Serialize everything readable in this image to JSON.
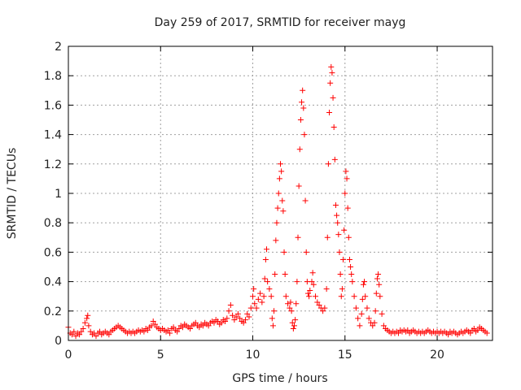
{
  "chart_data": {
    "type": "scatter",
    "title": "Day 259 of 2017, SRMTID for receiver mayg",
    "xlabel": "GPS time / hours",
    "ylabel": "SRMTID / TECUs",
    "xlim": [
      0,
      23
    ],
    "ylim": [
      0,
      2
    ],
    "xticks": [
      0,
      5,
      10,
      15,
      20
    ],
    "xtick_labels": [
      "0",
      "5",
      "10",
      "15",
      "20"
    ],
    "yticks": [
      0,
      0.2,
      0.4,
      0.6,
      0.8,
      1,
      1.2,
      1.4,
      1.6,
      1.8,
      2
    ],
    "ytick_labels": [
      "0",
      "0.2",
      "0.4",
      "0.6",
      "0.8",
      "1",
      "1.2",
      "1.4",
      "1.6",
      "1.8",
      "2"
    ],
    "grid": true,
    "marker": "plus",
    "marker_color": "#ff0000",
    "series": [
      {
        "name": "SRMTID",
        "points": [
          [
            0.0,
            0.09
          ],
          [
            0.1,
            0.05
          ],
          [
            0.2,
            0.04
          ],
          [
            0.3,
            0.06
          ],
          [
            0.4,
            0.03
          ],
          [
            0.5,
            0.05
          ],
          [
            0.6,
            0.04
          ],
          [
            0.7,
            0.06
          ],
          [
            0.8,
            0.08
          ],
          [
            0.9,
            0.12
          ],
          [
            1.0,
            0.15
          ],
          [
            1.05,
            0.17
          ],
          [
            1.1,
            0.1
          ],
          [
            1.2,
            0.06
          ],
          [
            1.3,
            0.04
          ],
          [
            1.4,
            0.05
          ],
          [
            1.5,
            0.03
          ],
          [
            1.6,
            0.05
          ],
          [
            1.7,
            0.06
          ],
          [
            1.8,
            0.04
          ],
          [
            1.9,
            0.05
          ],
          [
            2.0,
            0.06
          ],
          [
            2.1,
            0.05
          ],
          [
            2.2,
            0.04
          ],
          [
            2.3,
            0.06
          ],
          [
            2.4,
            0.07
          ],
          [
            2.5,
            0.08
          ],
          [
            2.6,
            0.09
          ],
          [
            2.7,
            0.1
          ],
          [
            2.8,
            0.09
          ],
          [
            2.9,
            0.08
          ],
          [
            3.0,
            0.07
          ],
          [
            3.1,
            0.06
          ],
          [
            3.2,
            0.05
          ],
          [
            3.3,
            0.06
          ],
          [
            3.4,
            0.05
          ],
          [
            3.5,
            0.06
          ],
          [
            3.6,
            0.05
          ],
          [
            3.7,
            0.06
          ],
          [
            3.8,
            0.07
          ],
          [
            3.9,
            0.06
          ],
          [
            4.0,
            0.07
          ],
          [
            4.1,
            0.06
          ],
          [
            4.2,
            0.08
          ],
          [
            4.3,
            0.07
          ],
          [
            4.4,
            0.09
          ],
          [
            4.5,
            0.1
          ],
          [
            4.6,
            0.13
          ],
          [
            4.7,
            0.11
          ],
          [
            4.8,
            0.09
          ],
          [
            4.9,
            0.08
          ],
          [
            5.0,
            0.07
          ],
          [
            5.1,
            0.08
          ],
          [
            5.2,
            0.07
          ],
          [
            5.3,
            0.06
          ],
          [
            5.4,
            0.07
          ],
          [
            5.5,
            0.05
          ],
          [
            5.6,
            0.08
          ],
          [
            5.7,
            0.09
          ],
          [
            5.8,
            0.07
          ],
          [
            5.9,
            0.06
          ],
          [
            6.0,
            0.08
          ],
          [
            6.1,
            0.1
          ],
          [
            6.2,
            0.09
          ],
          [
            6.3,
            0.11
          ],
          [
            6.4,
            0.1
          ],
          [
            6.5,
            0.09
          ],
          [
            6.6,
            0.08
          ],
          [
            6.7,
            0.1
          ],
          [
            6.8,
            0.11
          ],
          [
            6.9,
            0.12
          ],
          [
            7.0,
            0.1
          ],
          [
            7.1,
            0.09
          ],
          [
            7.2,
            0.11
          ],
          [
            7.3,
            0.1
          ],
          [
            7.4,
            0.12
          ],
          [
            7.5,
            0.11
          ],
          [
            7.6,
            0.1
          ],
          [
            7.7,
            0.12
          ],
          [
            7.8,
            0.13
          ],
          [
            7.9,
            0.12
          ],
          [
            8.0,
            0.14
          ],
          [
            8.1,
            0.13
          ],
          [
            8.2,
            0.11
          ],
          [
            8.3,
            0.12
          ],
          [
            8.4,
            0.14
          ],
          [
            8.5,
            0.13
          ],
          [
            8.6,
            0.15
          ],
          [
            8.7,
            0.2
          ],
          [
            8.8,
            0.24
          ],
          [
            8.9,
            0.17
          ],
          [
            9.0,
            0.14
          ],
          [
            9.1,
            0.16
          ],
          [
            9.2,
            0.18
          ],
          [
            9.3,
            0.15
          ],
          [
            9.4,
            0.13
          ],
          [
            9.5,
            0.12
          ],
          [
            9.6,
            0.14
          ],
          [
            9.7,
            0.18
          ],
          [
            9.8,
            0.16
          ],
          [
            9.9,
            0.22
          ],
          [
            10.0,
            0.3
          ],
          [
            10.05,
            0.35
          ],
          [
            10.1,
            0.25
          ],
          [
            10.2,
            0.22
          ],
          [
            10.3,
            0.28
          ],
          [
            10.4,
            0.32
          ],
          [
            10.5,
            0.26
          ],
          [
            10.6,
            0.3
          ],
          [
            10.65,
            0.42
          ],
          [
            10.7,
            0.55
          ],
          [
            10.75,
            0.62
          ],
          [
            10.8,
            0.4
          ],
          [
            10.9,
            0.35
          ],
          [
            11.0,
            0.3
          ],
          [
            11.05,
            0.15
          ],
          [
            11.1,
            0.1
          ],
          [
            11.15,
            0.2
          ],
          [
            11.2,
            0.45
          ],
          [
            11.25,
            0.68
          ],
          [
            11.3,
            0.8
          ],
          [
            11.35,
            0.9
          ],
          [
            11.4,
            1.0
          ],
          [
            11.45,
            1.1
          ],
          [
            11.5,
            1.2
          ],
          [
            11.55,
            1.15
          ],
          [
            11.6,
            0.95
          ],
          [
            11.65,
            0.88
          ],
          [
            11.7,
            0.6
          ],
          [
            11.75,
            0.45
          ],
          [
            11.8,
            0.3
          ],
          [
            11.9,
            0.25
          ],
          [
            12.0,
            0.22
          ],
          [
            12.05,
            0.26
          ],
          [
            12.1,
            0.2
          ],
          [
            12.15,
            0.12
          ],
          [
            12.2,
            0.08
          ],
          [
            12.25,
            0.1
          ],
          [
            12.3,
            0.14
          ],
          [
            12.35,
            0.25
          ],
          [
            12.4,
            0.4
          ],
          [
            12.45,
            0.7
          ],
          [
            12.5,
            1.05
          ],
          [
            12.55,
            1.3
          ],
          [
            12.6,
            1.5
          ],
          [
            12.65,
            1.62
          ],
          [
            12.7,
            1.7
          ],
          [
            12.75,
            1.58
          ],
          [
            12.8,
            1.4
          ],
          [
            12.85,
            0.95
          ],
          [
            12.9,
            0.6
          ],
          [
            12.95,
            0.4
          ],
          [
            13.0,
            0.32
          ],
          [
            13.05,
            0.3
          ],
          [
            13.1,
            0.34
          ],
          [
            13.2,
            0.4
          ],
          [
            13.25,
            0.46
          ],
          [
            13.3,
            0.38
          ],
          [
            13.4,
            0.3
          ],
          [
            13.5,
            0.26
          ],
          [
            13.6,
            0.24
          ],
          [
            13.7,
            0.22
          ],
          [
            13.8,
            0.2
          ],
          [
            13.9,
            0.22
          ],
          [
            14.0,
            0.35
          ],
          [
            14.05,
            0.7
          ],
          [
            14.1,
            1.2
          ],
          [
            14.15,
            1.55
          ],
          [
            14.2,
            1.75
          ],
          [
            14.25,
            1.86
          ],
          [
            14.3,
            1.82
          ],
          [
            14.35,
            1.65
          ],
          [
            14.4,
            1.45
          ],
          [
            14.45,
            1.23
          ],
          [
            14.5,
            0.92
          ],
          [
            14.55,
            0.85
          ],
          [
            14.6,
            0.8
          ],
          [
            14.65,
            0.72
          ],
          [
            14.7,
            0.6
          ],
          [
            14.75,
            0.45
          ],
          [
            14.8,
            0.3
          ],
          [
            14.85,
            0.35
          ],
          [
            14.9,
            0.55
          ],
          [
            14.95,
            0.75
          ],
          [
            15.0,
            1.0
          ],
          [
            15.05,
            1.15
          ],
          [
            15.1,
            1.1
          ],
          [
            15.15,
            0.9
          ],
          [
            15.2,
            0.7
          ],
          [
            15.25,
            0.55
          ],
          [
            15.3,
            0.5
          ],
          [
            15.35,
            0.45
          ],
          [
            15.4,
            0.4
          ],
          [
            15.5,
            0.3
          ],
          [
            15.6,
            0.22
          ],
          [
            15.7,
            0.15
          ],
          [
            15.8,
            0.1
          ],
          [
            15.9,
            0.18
          ],
          [
            15.95,
            0.28
          ],
          [
            16.0,
            0.38
          ],
          [
            16.05,
            0.4
          ],
          [
            16.1,
            0.3
          ],
          [
            16.2,
            0.22
          ],
          [
            16.3,
            0.15
          ],
          [
            16.4,
            0.12
          ],
          [
            16.5,
            0.1
          ],
          [
            16.6,
            0.12
          ],
          [
            16.65,
            0.2
          ],
          [
            16.7,
            0.32
          ],
          [
            16.75,
            0.42
          ],
          [
            16.8,
            0.45
          ],
          [
            16.85,
            0.38
          ],
          [
            16.9,
            0.3
          ],
          [
            17.0,
            0.18
          ],
          [
            17.1,
            0.1
          ],
          [
            17.2,
            0.08
          ],
          [
            17.3,
            0.07
          ],
          [
            17.4,
            0.06
          ],
          [
            17.5,
            0.05
          ],
          [
            17.6,
            0.06
          ],
          [
            17.7,
            0.05
          ],
          [
            17.8,
            0.06
          ],
          [
            17.9,
            0.05
          ],
          [
            18.0,
            0.07
          ],
          [
            18.1,
            0.06
          ],
          [
            18.2,
            0.07
          ],
          [
            18.3,
            0.06
          ],
          [
            18.4,
            0.07
          ],
          [
            18.5,
            0.05
          ],
          [
            18.6,
            0.06
          ],
          [
            18.7,
            0.07
          ],
          [
            18.8,
            0.06
          ],
          [
            18.9,
            0.05
          ],
          [
            19.0,
            0.06
          ],
          [
            19.1,
            0.05
          ],
          [
            19.2,
            0.06
          ],
          [
            19.3,
            0.05
          ],
          [
            19.4,
            0.06
          ],
          [
            19.5,
            0.07
          ],
          [
            19.6,
            0.06
          ],
          [
            19.7,
            0.05
          ],
          [
            19.8,
            0.06
          ],
          [
            19.9,
            0.05
          ],
          [
            20.0,
            0.06
          ],
          [
            20.1,
            0.05
          ],
          [
            20.2,
            0.06
          ],
          [
            20.3,
            0.05
          ],
          [
            20.4,
            0.06
          ],
          [
            20.5,
            0.05
          ],
          [
            20.6,
            0.04
          ],
          [
            20.7,
            0.06
          ],
          [
            20.8,
            0.05
          ],
          [
            20.9,
            0.06
          ],
          [
            21.0,
            0.05
          ],
          [
            21.1,
            0.04
          ],
          [
            21.2,
            0.05
          ],
          [
            21.3,
            0.06
          ],
          [
            21.4,
            0.05
          ],
          [
            21.5,
            0.06
          ],
          [
            21.6,
            0.07
          ],
          [
            21.7,
            0.06
          ],
          [
            21.8,
            0.05
          ],
          [
            21.9,
            0.07
          ],
          [
            22.0,
            0.08
          ],
          [
            22.1,
            0.06
          ],
          [
            22.2,
            0.07
          ],
          [
            22.3,
            0.09
          ],
          [
            22.4,
            0.08
          ],
          [
            22.5,
            0.07
          ],
          [
            22.6,
            0.06
          ],
          [
            22.7,
            0.05
          ]
        ]
      }
    ]
  }
}
